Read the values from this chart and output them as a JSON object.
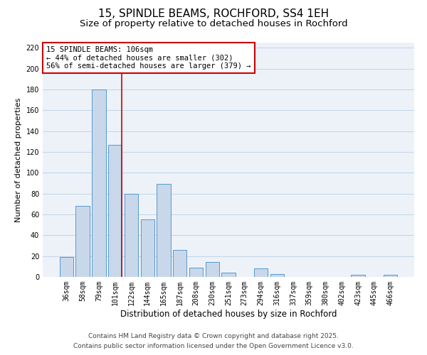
{
  "title": "15, SPINDLE BEAMS, ROCHFORD, SS4 1EH",
  "subtitle": "Size of property relative to detached houses in Rochford",
  "xlabel": "Distribution of detached houses by size in Rochford",
  "ylabel": "Number of detached properties",
  "bar_labels": [
    "36sqm",
    "58sqm",
    "79sqm",
    "101sqm",
    "122sqm",
    "144sqm",
    "165sqm",
    "187sqm",
    "208sqm",
    "230sqm",
    "251sqm",
    "273sqm",
    "294sqm",
    "316sqm",
    "337sqm",
    "359sqm",
    "380sqm",
    "402sqm",
    "423sqm",
    "445sqm",
    "466sqm"
  ],
  "bar_values": [
    19,
    68,
    180,
    127,
    80,
    55,
    89,
    26,
    9,
    14,
    4,
    0,
    8,
    3,
    0,
    0,
    0,
    0,
    2,
    0,
    2
  ],
  "bar_color": "#c8d8ea",
  "bar_edge_color": "#5599cc",
  "vline_bar_index": 3,
  "vline_color": "#cc0000",
  "annotation_line1": "15 SPINDLE BEAMS: 106sqm",
  "annotation_line2": "← 44% of detached houses are smaller (302)",
  "annotation_line3": "56% of semi-detached houses are larger (379) →",
  "annotation_box_edge": "#cc0000",
  "ylim": [
    0,
    225
  ],
  "yticks": [
    0,
    20,
    40,
    60,
    80,
    100,
    120,
    140,
    160,
    180,
    200,
    220
  ],
  "grid_color": "#c0d4e8",
  "bg_color": "#edf2f8",
  "footnote1": "Contains HM Land Registry data © Crown copyright and database right 2025.",
  "footnote2": "Contains public sector information licensed under the Open Government Licence v3.0.",
  "title_fontsize": 11,
  "subtitle_fontsize": 9.5,
  "xlabel_fontsize": 8.5,
  "ylabel_fontsize": 8,
  "tick_fontsize": 7,
  "annotation_fontsize": 7.5,
  "footnote_fontsize": 6.5
}
